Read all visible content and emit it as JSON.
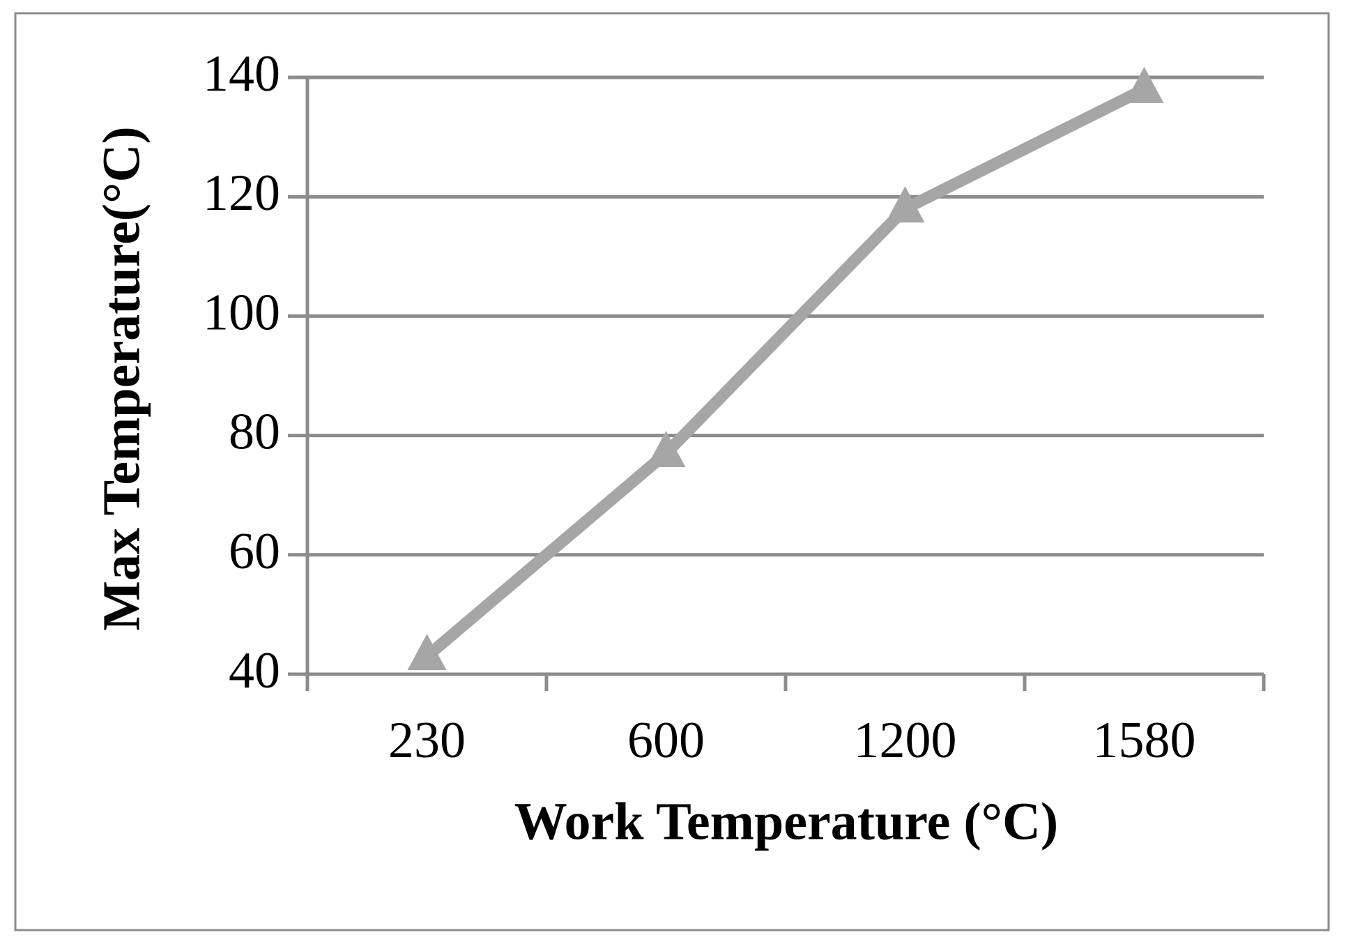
{
  "chart_data": {
    "type": "line",
    "title": "",
    "xlabel": "Work Temperature (°C)",
    "ylabel": "Max Temperature(°C)",
    "categories": [
      "230",
      "600",
      "1200",
      "1580"
    ],
    "series": [
      {
        "values": [
          43,
          77,
          118,
          138
        ],
        "marker": "triangle",
        "color": "#a6a6a6"
      }
    ],
    "ylim": [
      40,
      140
    ],
    "yticks": [
      40,
      60,
      80,
      100,
      120,
      140
    ],
    "grid": "horizontal",
    "legend": "none",
    "colors": {
      "line": "#a6a6a6",
      "grid": "#8c8c8c",
      "frame": "#8c8c8c",
      "text": "#000000"
    }
  }
}
